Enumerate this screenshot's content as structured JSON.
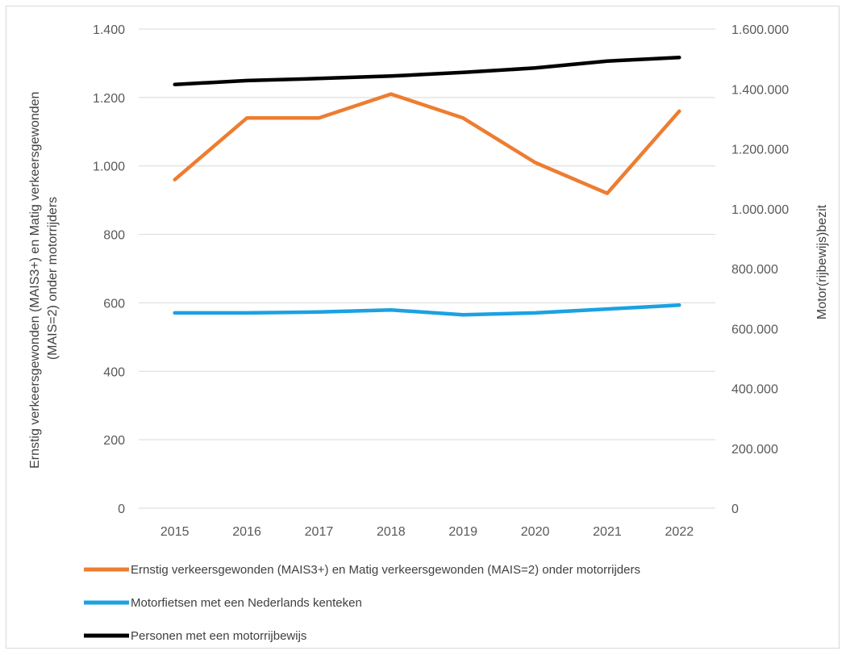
{
  "chart_data": {
    "type": "line",
    "categories": [
      "2015",
      "2016",
      "2017",
      "2018",
      "2019",
      "2020",
      "2021",
      "2022"
    ],
    "y_left": {
      "label": "Ernstig verkeersgewonden (MAIS3+) en Matig verkeersgewonden (MAIS=2) onder motorrijders",
      "label_lines": [
        "Ernstig verkeersgewonden (MAIS3+) en Matig verkeersgewonden",
        "(MAIS=2) onder motorrijders"
      ],
      "range": [
        0,
        1400
      ],
      "ticks": [
        0,
        200,
        400,
        600,
        800,
        1000,
        1200,
        1400
      ],
      "tick_labels": [
        "0",
        "200",
        "400",
        "600",
        "800",
        "1.000",
        "1.200",
        "1.400"
      ]
    },
    "y_right": {
      "label": "Motor(rijbewijs)bezit",
      "range": [
        0,
        1600000
      ],
      "ticks": [
        0,
        200000,
        400000,
        600000,
        800000,
        1000000,
        1200000,
        1400000,
        1600000
      ],
      "tick_labels": [
        "0",
        "200.000",
        "400.000",
        "600.000",
        "800.000",
        "1.000.000",
        "1.200.000",
        "1.400.000",
        "1.600.000"
      ]
    },
    "series": [
      {
        "name": "Ernstig verkeersgewonden (MAIS3+) en Matig verkeersgewonden (MAIS=2) onder motorrijders",
        "axis": "left",
        "color": "#ed7d31",
        "values": [
          960,
          1140,
          1140,
          1210,
          1140,
          1010,
          920,
          1160
        ]
      },
      {
        "name": "Motorfietsen met een Nederlands kenteken",
        "axis": "right",
        "color": "#1ba1e2",
        "values": [
          652000,
          652000,
          655000,
          662000,
          646000,
          652000,
          665000,
          678000
        ]
      },
      {
        "name": "Personen met een motorrijbewijs",
        "axis": "right",
        "color": "#000000",
        "values": [
          1415000,
          1428000,
          1435000,
          1443000,
          1455000,
          1470000,
          1493000,
          1505000
        ]
      }
    ],
    "grid": true,
    "legend_position": "bottom"
  }
}
